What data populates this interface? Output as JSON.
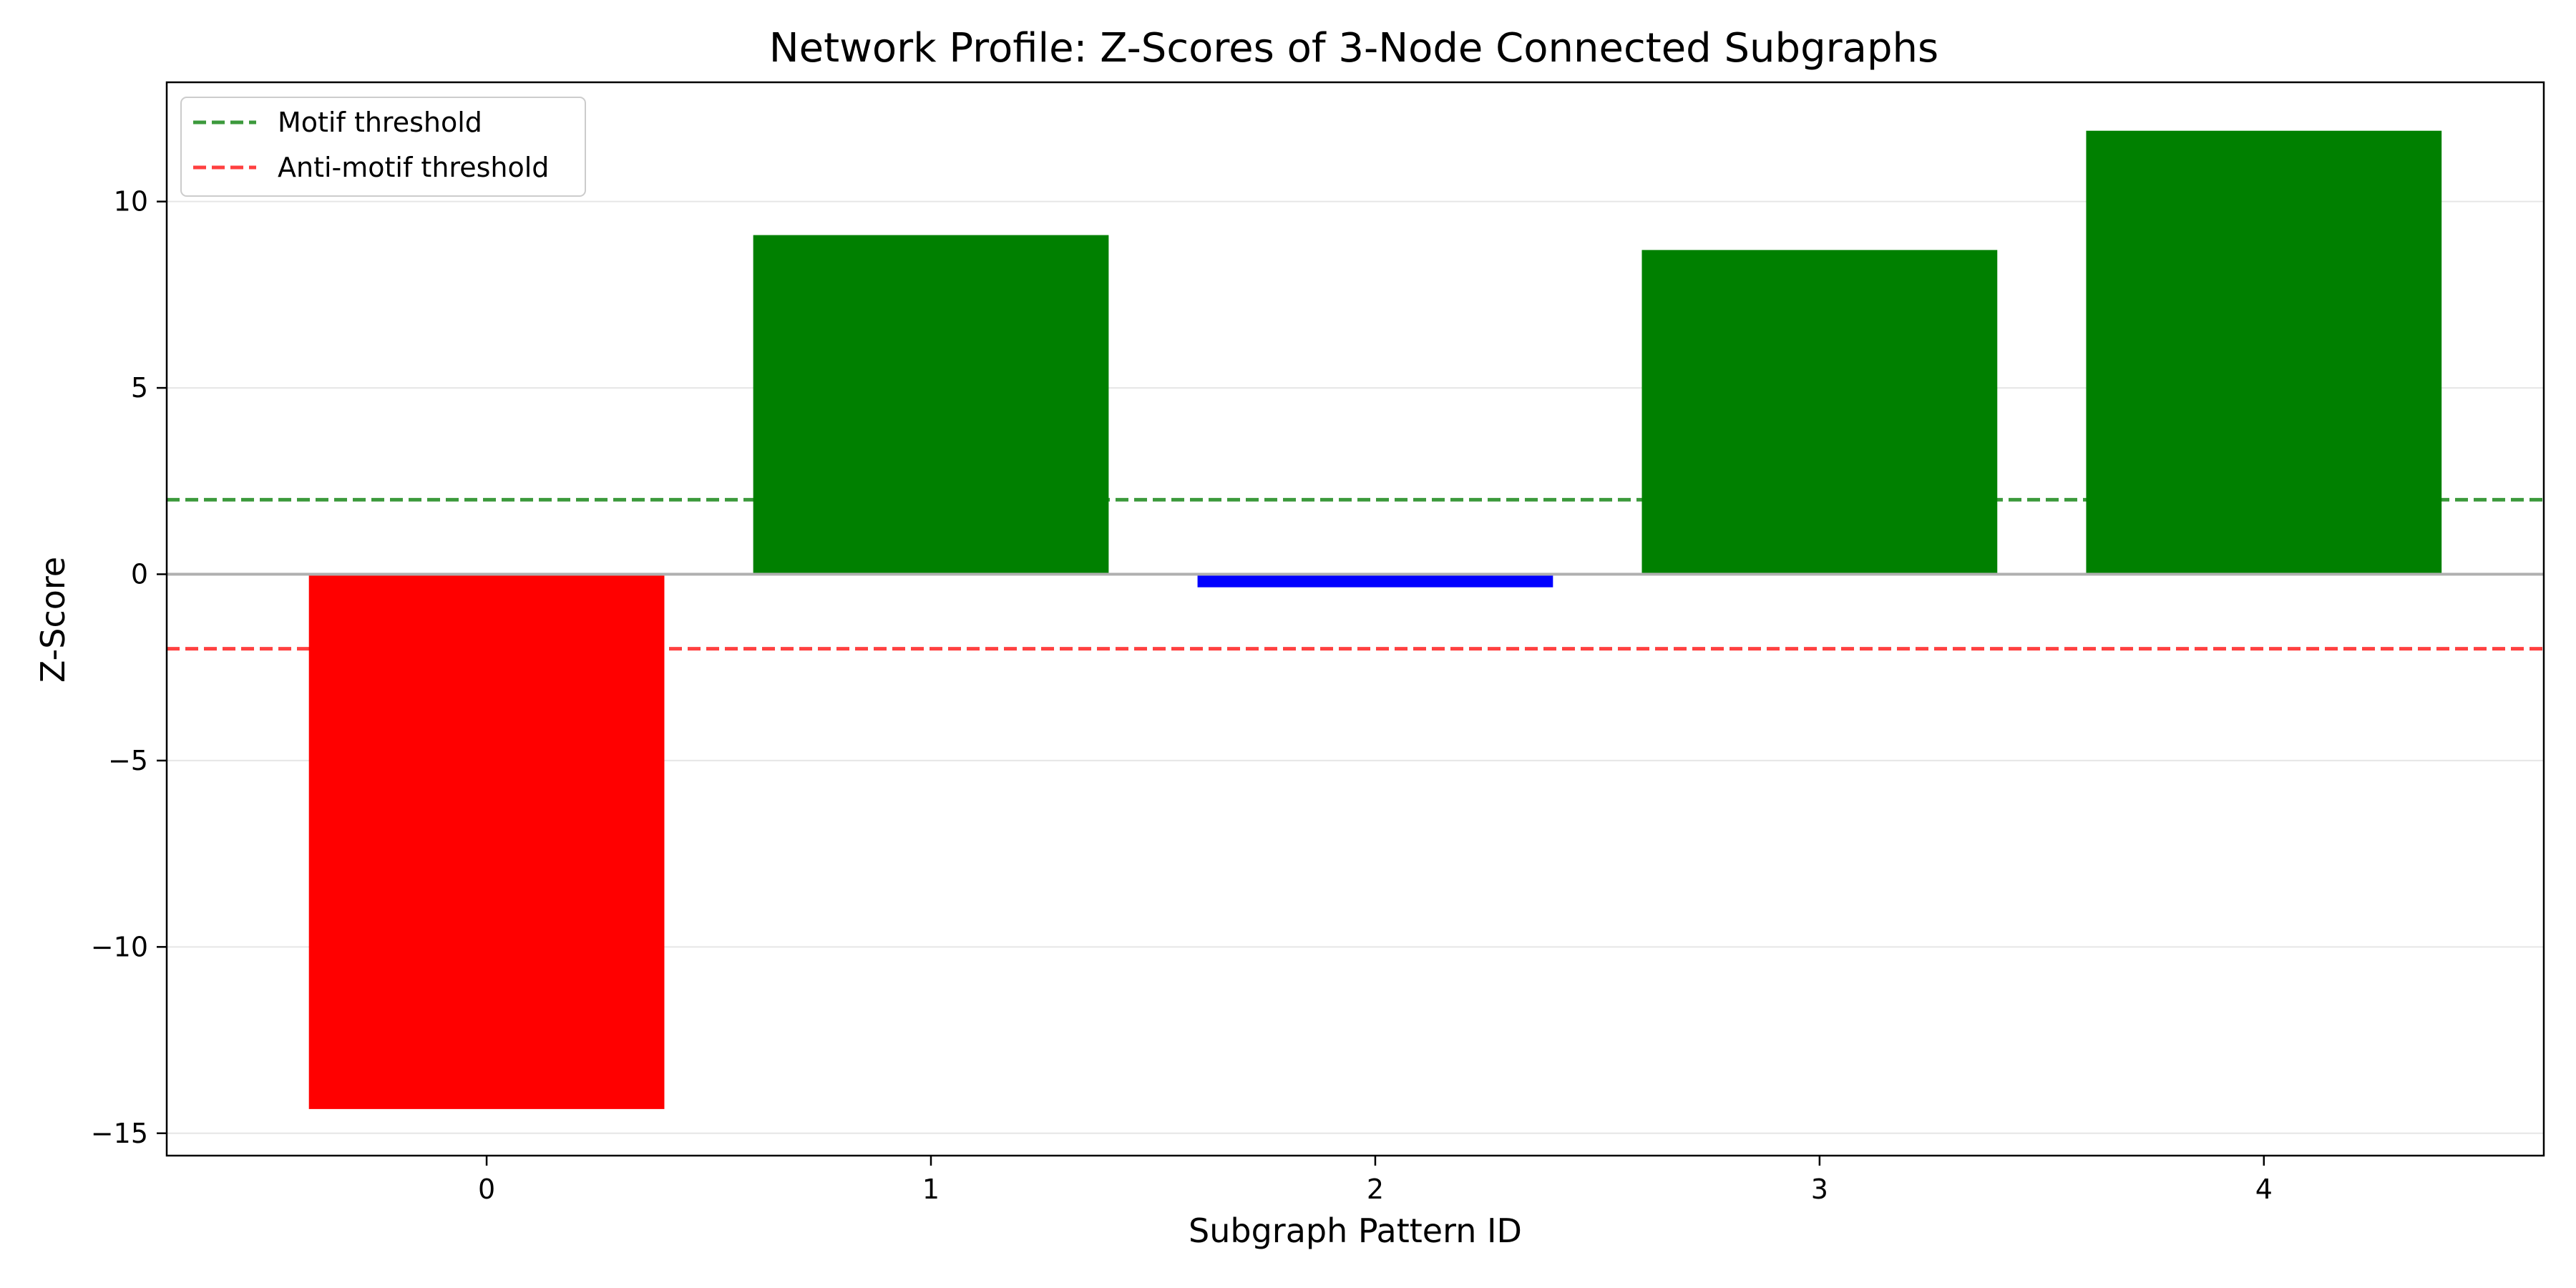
{
  "chart_data": {
    "type": "bar",
    "title": "Network Profile: Z-Scores of 3-Node Connected Subgraphs",
    "xlabel": "Subgraph Pattern ID",
    "ylabel": "Z-Score",
    "categories": [
      "0",
      "1",
      "2",
      "3",
      "4"
    ],
    "values": [
      -14.35,
      9.1,
      -0.35,
      8.7,
      11.9
    ],
    "bar_colors": [
      "#ff0000",
      "#008000",
      "#0000ff",
      "#008000",
      "#008000"
    ],
    "x_ticks": [
      "0",
      "1",
      "2",
      "3",
      "4"
    ],
    "y_ticks": [
      -15,
      -10,
      -5,
      0,
      5,
      10
    ],
    "y_tick_labels": [
      "−15",
      "−10",
      "−5",
      "0",
      "5",
      "10"
    ],
    "xlim": [
      -0.72,
      4.63
    ],
    "ylim": [
      -15.6,
      13.2
    ],
    "grid": "horizontal",
    "zero_line": {
      "value": 0,
      "color": "#b0b0b0"
    },
    "reference_lines": [
      {
        "name": "Motif threshold",
        "value": 2,
        "color": "#3c9a3c",
        "style": "dashed"
      },
      {
        "name": "Anti-motif threshold",
        "value": -2,
        "color": "#ff4040",
        "style": "dashed"
      }
    ],
    "legend": {
      "placement": "top-left",
      "entries": [
        "Motif threshold",
        "Anti-motif threshold"
      ]
    }
  }
}
